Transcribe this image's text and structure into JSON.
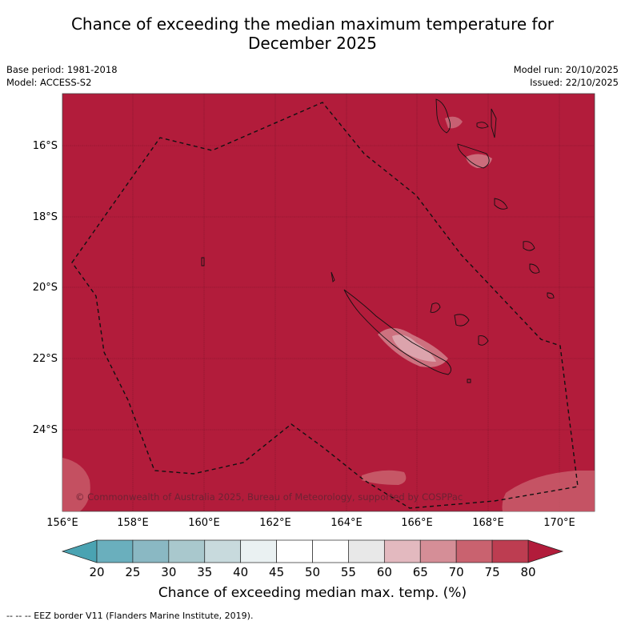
{
  "title_line1": "Chance of exceeding the median maximum temperature for",
  "title_line2": "December 2025",
  "meta": {
    "base_period": "Base period: 1981-2018",
    "model": "Model: ACCESS-S2",
    "model_run": "Model run: 20/10/2025",
    "issued": "Issued: 22/10/2025"
  },
  "map": {
    "background_color": "#b21c3b",
    "lat_labels": [
      "16°S",
      "18°S",
      "20°S",
      "22°S",
      "24°S"
    ],
    "lon_labels": [
      "156°E",
      "158°E",
      "160°E",
      "162°E",
      "164°E",
      "166°E",
      "168°E",
      "170°E"
    ],
    "copyright": "© Commonwealth of Australia 2025, Bureau of Meteorology, supported by COSPPac"
  },
  "colorbar": {
    "ticks": [
      "20",
      "25",
      "30",
      "35",
      "40",
      "45",
      "50",
      "55",
      "60",
      "65",
      "70",
      "75",
      "80"
    ],
    "colors": [
      "#6aafbd",
      "#8ab8c3",
      "#a9c8cd",
      "#c8dadd",
      "#eaf1f2",
      "#ffffff",
      "#ffffff",
      "#e8e8e8",
      "#e3b9bf",
      "#d58e97",
      "#c9626f",
      "#bd3d51"
    ],
    "under_color": "#4aa3b2",
    "over_color": "#b21c3b",
    "label": "Chance of exceeding median max. temp. (%)"
  },
  "footer": "--  --  -- EEZ border V11 (Flanders Marine Institute, 2019)."
}
